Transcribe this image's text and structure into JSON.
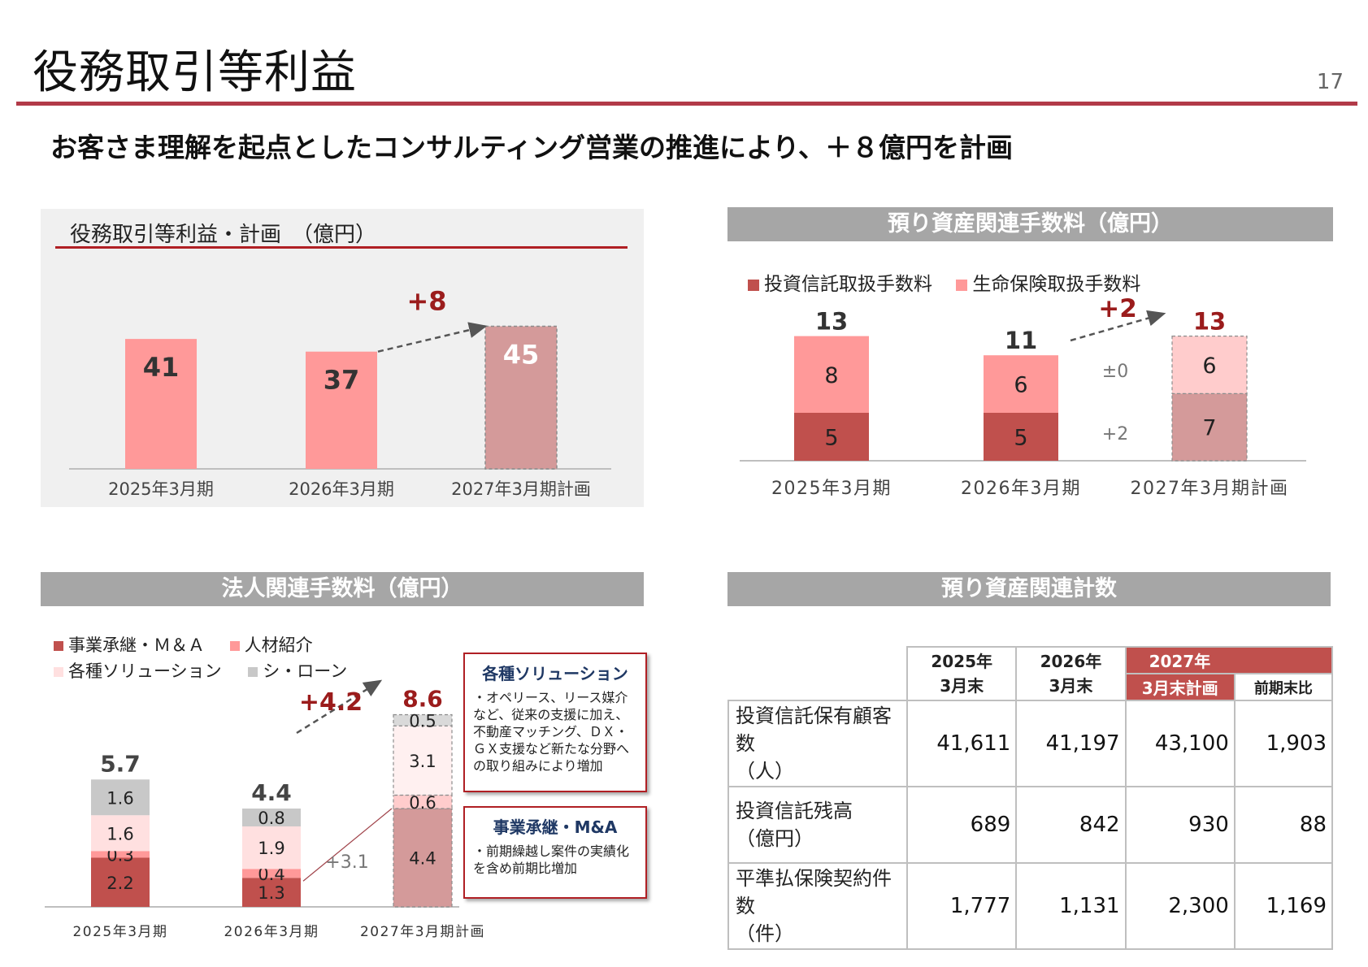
{
  "header": {
    "title": "役務取引等利益",
    "page_number": "17",
    "subtitle": "お客さま理解を起点としたコンサルティング営業の推進により、＋８億円を計画"
  },
  "colors": {
    "accent": "#b23a48",
    "bar_pink": "#ff9999",
    "bar_plan": "#d49a9a",
    "dark_red": "#c0504d",
    "dark_red_plan": "#d49a9a",
    "light_pink": "#ffcccc",
    "header_gray": "#a6a6a6",
    "gray_series": "#c8c8c8",
    "text_red": "#9b1c1c"
  },
  "chart_data": [
    {
      "id": "total-profit",
      "type": "bar",
      "title": "役務取引等利益・計画　（億円）",
      "categories": [
        "2025年3月期",
        "2026年3月期",
        "2027年3月期計画"
      ],
      "values": [
        41,
        37,
        45
      ],
      "change_label": "+8",
      "ylim": [
        0,
        50
      ]
    },
    {
      "id": "deposit-fees",
      "type": "bar",
      "stacked": true,
      "title": "預り資産関連手数料（億円）",
      "categories": [
        "2025年3月期",
        "2026年3月期",
        "2027年3月期計画"
      ],
      "series": [
        {
          "name": "投資信託取扱手数料",
          "values": [
            5,
            5,
            7
          ]
        },
        {
          "name": "生命保険取扱手数料",
          "values": [
            8,
            6,
            6
          ]
        }
      ],
      "totals": [
        "13",
        "11",
        "13"
      ],
      "change_label": "+2",
      "segment_changes": [
        "±0",
        "+2"
      ]
    },
    {
      "id": "corporate-fees",
      "type": "bar",
      "stacked": true,
      "title": "法人関連手数料（億円）",
      "categories": [
        "2025年3月期",
        "2026年3月期",
        "2027年3月期計画"
      ],
      "series": [
        {
          "name": "事業承継・Ｍ＆Ａ",
          "values": [
            2.2,
            1.3,
            4.4
          ]
        },
        {
          "name": "人材紹介",
          "values": [
            0.3,
            0.4,
            0.6
          ]
        },
        {
          "name": "各種ソリューション",
          "values": [
            1.6,
            1.9,
            3.1
          ]
        },
        {
          "name": "シ・ローン",
          "values": [
            1.6,
            0.8,
            0.5
          ]
        }
      ],
      "totals": [
        "5.7",
        "4.4",
        "8.6"
      ],
      "change_label": "+4.2",
      "segment_change_label": "+3.1"
    },
    {
      "id": "deposit-counts",
      "type": "table",
      "title": "預り資産関連計数",
      "columns": [
        "2025年\n3月末",
        "2026年\n3月末",
        "2027年\n3月末計画",
        "前期末比"
      ],
      "rows": [
        {
          "label": "投資信託保有顧客数\n（人）",
          "values": [
            "41,611",
            "41,197",
            "43,100",
            "1,903"
          ]
        },
        {
          "label": "投資信託残高\n（億円）",
          "values": [
            "689",
            "842",
            "930",
            "88"
          ]
        },
        {
          "label": "平準払保険契約件数\n（件）",
          "values": [
            "1,777",
            "1,131",
            "2,300",
            "1,169"
          ]
        }
      ]
    }
  ],
  "callouts": [
    {
      "title": "各種ソリューション",
      "body": "・オペリース、リース媒介など、従来の支援に加え、不動産マッチング、ＤＸ・ＧＸ支援など新たな分野への取り組みにより増加"
    },
    {
      "title": "事業承継・M&A",
      "body": "・前期繰越し案件の実績化を含め前期比増加"
    }
  ],
  "table_header": {
    "col1": "2025年",
    "col1b": "3月末",
    "col2": "2026年",
    "col2b": "3月末",
    "col3": "2027年",
    "col3b": "3月末計画",
    "col4": "前期末比"
  }
}
